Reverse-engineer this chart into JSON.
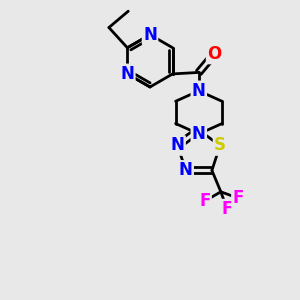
{
  "bg_color": "#e8e8e8",
  "atom_colors": {
    "C": "#000000",
    "N": "#0000ff",
    "O": "#ff0000",
    "S": "#cccc00",
    "F": "#ff00ff",
    "H": "#000000"
  },
  "bond_color": "#000000",
  "bond_width": 2.0,
  "font_size_atom": 12
}
